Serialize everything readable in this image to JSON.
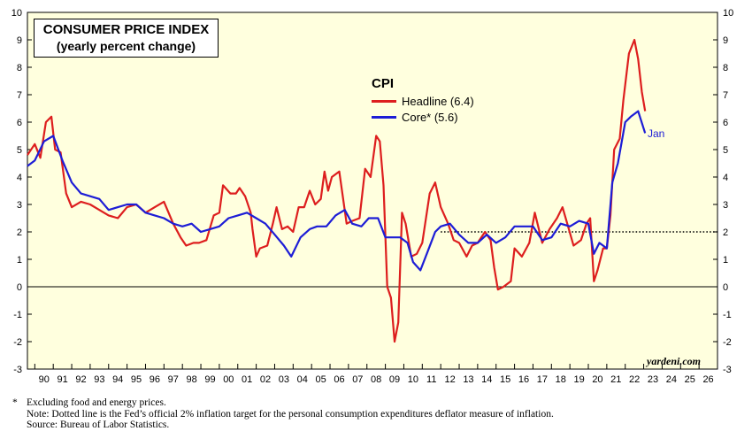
{
  "chart_data": {
    "type": "line",
    "title": "CONSUMER PRICE INDEX",
    "subtitle": "(yearly percent change)",
    "legend_title": "CPI",
    "xlabel": "",
    "ylabel": "",
    "ylim": [
      -3,
      10
    ],
    "xlim": [
      1989.6,
      2027.0
    ],
    "y_ticks": [
      -3,
      -2,
      -1,
      0,
      1,
      2,
      3,
      4,
      5,
      6,
      7,
      8,
      9,
      10
    ],
    "x_tick_labels": [
      "90",
      "91",
      "92",
      "93",
      "94",
      "95",
      "96",
      "97",
      "98",
      "99",
      "00",
      "01",
      "02",
      "03",
      "04",
      "05",
      "06",
      "07",
      "08",
      "09",
      "10",
      "11",
      "12",
      "13",
      "14",
      "15",
      "16",
      "17",
      "18",
      "19",
      "20",
      "21",
      "22",
      "23",
      "24",
      "25",
      "26"
    ],
    "target_line": 2,
    "zero_line": 0,
    "end_label": "Jan",
    "colors": {
      "headline": "#dd1e1e",
      "core": "#1d1dd6"
    },
    "series": [
      {
        "name": "Headline (6.4)",
        "color": "#dd1e1e",
        "x": [
          1989.6,
          1990.0,
          1990.3,
          1990.6,
          1990.9,
          1991.1,
          1991.4,
          1991.7,
          1992.0,
          1992.5,
          1993.0,
          1993.5,
          1994.0,
          1994.5,
          1995.0,
          1995.5,
          1996.0,
          1996.5,
          1997.0,
          1997.5,
          1997.9,
          1998.2,
          1998.6,
          1998.9,
          1999.3,
          1999.7,
          2000.0,
          2000.2,
          2000.6,
          2000.9,
          2001.1,
          2001.4,
          2001.7,
          2001.8,
          2002.0,
          2002.2,
          2002.6,
          2002.9,
          2003.1,
          2003.4,
          2003.7,
          2004.0,
          2004.3,
          2004.6,
          2004.9,
          2005.2,
          2005.5,
          2005.7,
          2005.9,
          2006.1,
          2006.5,
          2006.9,
          2007.2,
          2007.6,
          2007.9,
          2008.2,
          2008.5,
          2008.7,
          2008.9,
          2009.1,
          2009.3,
          2009.5,
          2009.7,
          2009.9,
          2010.1,
          2010.4,
          2010.7,
          2011.0,
          2011.4,
          2011.7,
          2012.0,
          2012.4,
          2012.7,
          2013.0,
          2013.4,
          2013.7,
          2014.0,
          2014.4,
          2014.7,
          2014.9,
          2015.1,
          2015.4,
          2015.8,
          2016.0,
          2016.4,
          2016.8,
          2017.1,
          2017.5,
          2017.9,
          2018.3,
          2018.6,
          2018.9,
          2019.2,
          2019.6,
          2019.9,
          2020.1,
          2020.3,
          2020.5,
          2020.8,
          2021.0,
          2021.2,
          2021.4,
          2021.7,
          2021.9,
          2022.2,
          2022.5,
          2022.7,
          2022.9,
          2023.08
        ],
        "y": [
          4.8,
          5.2,
          4.7,
          6.0,
          6.2,
          5.0,
          4.9,
          3.4,
          2.9,
          3.1,
          3.0,
          2.8,
          2.6,
          2.5,
          2.9,
          3.0,
          2.7,
          2.9,
          3.1,
          2.3,
          1.8,
          1.5,
          1.6,
          1.6,
          1.7,
          2.6,
          2.7,
          3.7,
          3.4,
          3.4,
          3.6,
          3.3,
          2.7,
          2.1,
          1.1,
          1.4,
          1.5,
          2.3,
          2.9,
          2.1,
          2.2,
          2.0,
          2.9,
          2.9,
          3.5,
          3.0,
          3.2,
          4.2,
          3.5,
          4.0,
          4.2,
          2.3,
          2.4,
          2.5,
          4.3,
          4.0,
          5.5,
          5.3,
          3.7,
          0.0,
          -0.4,
          -2.0,
          -1.3,
          2.7,
          2.3,
          1.1,
          1.2,
          1.6,
          3.4,
          3.8,
          2.9,
          2.3,
          1.7,
          1.6,
          1.1,
          1.5,
          1.6,
          2.0,
          1.7,
          0.7,
          -0.1,
          0.0,
          0.2,
          1.4,
          1.1,
          1.6,
          2.7,
          1.6,
          2.1,
          2.5,
          2.9,
          2.2,
          1.5,
          1.7,
          2.3,
          2.5,
          0.2,
          0.6,
          1.4,
          1.4,
          2.6,
          5.0,
          5.4,
          6.8,
          8.5,
          9.0,
          8.3,
          7.1,
          6.4
        ]
      },
      {
        "name": "Core* (5.6)",
        "color": "#1d1dd6",
        "x": [
          1989.6,
          1990.0,
          1990.5,
          1991.0,
          1991.5,
          1992.0,
          1992.5,
          1993.0,
          1993.5,
          1994.0,
          1994.5,
          1995.0,
          1995.5,
          1996.0,
          1996.5,
          1997.0,
          1997.5,
          1998.0,
          1998.5,
          1999.0,
          1999.5,
          2000.0,
          2000.5,
          2001.0,
          2001.5,
          2002.0,
          2002.5,
          2003.0,
          2003.5,
          2003.9,
          2004.4,
          2004.9,
          2005.3,
          2005.8,
          2006.3,
          2006.8,
          2007.2,
          2007.7,
          2008.1,
          2008.6,
          2009.0,
          2009.4,
          2009.8,
          2010.2,
          2010.5,
          2010.9,
          2011.3,
          2011.7,
          2012.0,
          2012.5,
          2013.0,
          2013.5,
          2014.0,
          2014.5,
          2015.0,
          2015.5,
          2016.0,
          2016.5,
          2017.0,
          2017.5,
          2018.0,
          2018.5,
          2019.0,
          2019.5,
          2020.0,
          2020.3,
          2020.6,
          2021.0,
          2021.3,
          2021.6,
          2022.0,
          2022.3,
          2022.7,
          2023.08
        ],
        "y": [
          4.4,
          4.6,
          5.3,
          5.5,
          4.6,
          3.8,
          3.4,
          3.3,
          3.2,
          2.8,
          2.9,
          3.0,
          3.0,
          2.7,
          2.6,
          2.5,
          2.3,
          2.2,
          2.3,
          2.0,
          2.1,
          2.2,
          2.5,
          2.6,
          2.7,
          2.5,
          2.3,
          1.9,
          1.5,
          1.1,
          1.8,
          2.1,
          2.2,
          2.2,
          2.6,
          2.8,
          2.3,
          2.2,
          2.5,
          2.5,
          1.8,
          1.8,
          1.8,
          1.6,
          0.9,
          0.6,
          1.3,
          2.0,
          2.2,
          2.3,
          1.9,
          1.6,
          1.6,
          1.9,
          1.6,
          1.8,
          2.2,
          2.2,
          2.2,
          1.7,
          1.8,
          2.3,
          2.2,
          2.4,
          2.3,
          1.2,
          1.6,
          1.4,
          3.8,
          4.5,
          6.0,
          6.2,
          6.4,
          5.6
        ]
      }
    ]
  },
  "footnotes": {
    "star": "*",
    "line1": "Excluding food and energy prices.",
    "line2": "Note: Dotted line is the Fed’s official 2% inflation target for the personal consumption expenditures deflator measure of inflation.",
    "line3": "Source: Bureau of Labor Statistics."
  },
  "brand": "yardeni.com"
}
